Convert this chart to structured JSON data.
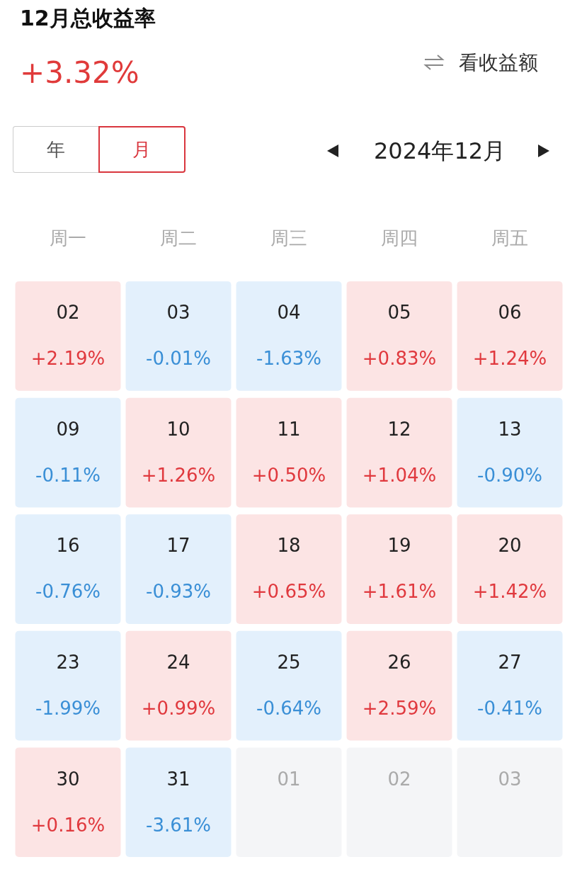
{
  "chart_data": {
    "type": "heatmap",
    "title": "12月总收益率",
    "subtitle": "+3.32%",
    "annotations": [
      "看收益额",
      "年",
      "月",
      "2024年12月",
      "02",
      "03",
      "04",
      "05",
      "06",
      "09",
      "10",
      "11",
      "12",
      "13",
      "16",
      "17",
      "18",
      "19",
      "20",
      "23",
      "24",
      "25",
      "26",
      "27",
      "30",
      "31",
      "01",
      "02",
      "03"
    ],
    "categories": [
      "周一",
      "周二",
      "周三",
      "周四",
      "周五"
    ],
    "y_categories": [
      null,
      null,
      null,
      null,
      null
    ],
    "cells": [
      [
        2.19,
        -0.01,
        -1.63,
        0.83,
        1.24
      ],
      [
        -0.11,
        1.26,
        0.5,
        1.04,
        -0.9
      ],
      [
        -0.76,
        -0.93,
        0.65,
        1.61,
        1.42
      ],
      [
        -1.99,
        0.99,
        -0.64,
        2.59,
        -0.41
      ],
      [
        0.16,
        -3.61,
        null,
        null,
        null
      ]
    ],
    "cell_labels": [
      [
        "+2.19%",
        "-0.01%",
        "-1.63%",
        "+0.83%",
        "+1.24%"
      ],
      [
        "-0.11%",
        "+1.26%",
        "+0.50%",
        "+1.04%",
        "-0.90%"
      ],
      [
        "-0.76%",
        "-0.93%",
        "+0.65%",
        "+1.61%",
        "+1.42%"
      ],
      [
        "-1.99%",
        "+0.99%",
        "-0.64%",
        "+2.59%",
        "-0.41%"
      ],
      [
        "+0.16%",
        "-3.61%",
        null,
        null,
        null
      ]
    ],
    "grid": false
  }
}
